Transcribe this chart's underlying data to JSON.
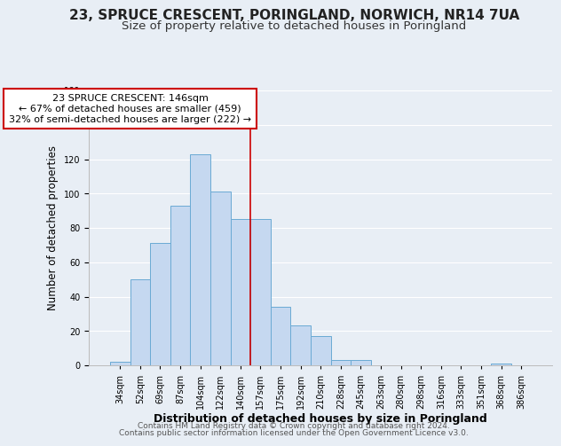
{
  "title": "23, SPRUCE CRESCENT, PORINGLAND, NORWICH, NR14 7UA",
  "subtitle": "Size of property relative to detached houses in Poringland",
  "xlabel": "Distribution of detached houses by size in Poringland",
  "ylabel": "Number of detached properties",
  "bar_labels": [
    "34sqm",
    "52sqm",
    "69sqm",
    "87sqm",
    "104sqm",
    "122sqm",
    "140sqm",
    "157sqm",
    "175sqm",
    "192sqm",
    "210sqm",
    "228sqm",
    "245sqm",
    "263sqm",
    "280sqm",
    "298sqm",
    "316sqm",
    "333sqm",
    "351sqm",
    "368sqm",
    "386sqm"
  ],
  "bar_values": [
    2,
    50,
    71,
    93,
    123,
    101,
    85,
    85,
    34,
    23,
    17,
    3,
    3,
    0,
    0,
    0,
    0,
    0,
    0,
    1,
    0
  ],
  "bar_color": "#c5d8f0",
  "bar_edge_color": "#6aaad4",
  "vline_x_index": 6.5,
  "vline_color": "#cc0000",
  "ylim": [
    0,
    160
  ],
  "yticks": [
    0,
    20,
    40,
    60,
    80,
    100,
    120,
    140,
    160
  ],
  "annotation_title": "23 SPRUCE CRESCENT: 146sqm",
  "annotation_line1": "← 67% of detached houses are smaller (459)",
  "annotation_line2": "32% of semi-detached houses are larger (222) →",
  "annotation_box_facecolor": "#ffffff",
  "annotation_box_edgecolor": "#cc0000",
  "footer1": "Contains HM Land Registry data © Crown copyright and database right 2024.",
  "footer2": "Contains public sector information licensed under the Open Government Licence v3.0.",
  "background_color": "#e8eef5",
  "grid_color": "#ffffff",
  "title_fontsize": 11,
  "subtitle_fontsize": 9.5,
  "ylabel_fontsize": 8.5,
  "xlabel_fontsize": 9,
  "tick_fontsize": 7,
  "annotation_fontsize": 8,
  "footer_fontsize": 6.5
}
